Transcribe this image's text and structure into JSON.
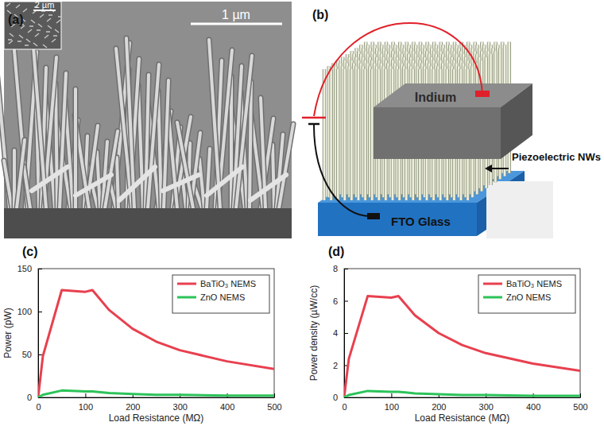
{
  "sem_image": {
    "label": "(a)",
    "inset_scale_bar": "2 µm",
    "scale_bar": "1 µm"
  },
  "schematic": {
    "label": "(b)",
    "top_electrode": "Indium",
    "nanowires": "Piezoelectric NWs",
    "substrate": "FTO Glass"
  },
  "chart_data": [
    {
      "type": "line",
      "annotation": "(c)",
      "x_label": "Load Resistance (MΩ)",
      "y_label": "Power (pW)",
      "x": [
        0,
        10,
        50,
        100,
        115,
        150,
        200,
        250,
        300,
        400,
        500
      ],
      "series": [
        {
          "name": "BaTiO₃ NEMS",
          "color": "#e8404f",
          "values": [
            0,
            48,
            125,
            123,
            125,
            102,
            80,
            65,
            55,
            42,
            33
          ]
        },
        {
          "name": "ZnO NEMS",
          "color": "#2cc35a",
          "values": [
            0,
            3,
            8,
            7,
            7,
            5,
            4,
            3,
            3,
            2,
            2
          ]
        }
      ],
      "xlim": [
        0,
        500
      ],
      "xticks": [
        0,
        100,
        200,
        300,
        400,
        500
      ],
      "ylim": [
        0,
        150
      ],
      "yticks": [
        0,
        50,
        100,
        150
      ],
      "grid": false,
      "legend": "upper right"
    },
    {
      "type": "line",
      "annotation": "(d)",
      "x_label": "Load Resistance (MΩ)",
      "y_label": "Power density (µW/cc)",
      "x": [
        0,
        10,
        50,
        100,
        115,
        150,
        200,
        250,
        300,
        400,
        500
      ],
      "series": [
        {
          "name": "BaTiO₃ NEMS",
          "color": "#e8404f",
          "values": [
            0,
            2.4,
            6.3,
            6.2,
            6.3,
            5.1,
            4.0,
            3.25,
            2.75,
            2.1,
            1.65
          ]
        },
        {
          "name": "ZnO NEMS",
          "color": "#2cc35a",
          "values": [
            0,
            0.15,
            0.4,
            0.35,
            0.35,
            0.25,
            0.2,
            0.15,
            0.15,
            0.1,
            0.1
          ]
        }
      ],
      "xlim": [
        0,
        500
      ],
      "xticks": [
        0,
        100,
        200,
        300,
        400,
        500
      ],
      "ylim": [
        0,
        8
      ],
      "yticks": [
        0,
        2,
        4,
        6,
        8
      ],
      "grid": false,
      "legend": "upper right"
    }
  ]
}
